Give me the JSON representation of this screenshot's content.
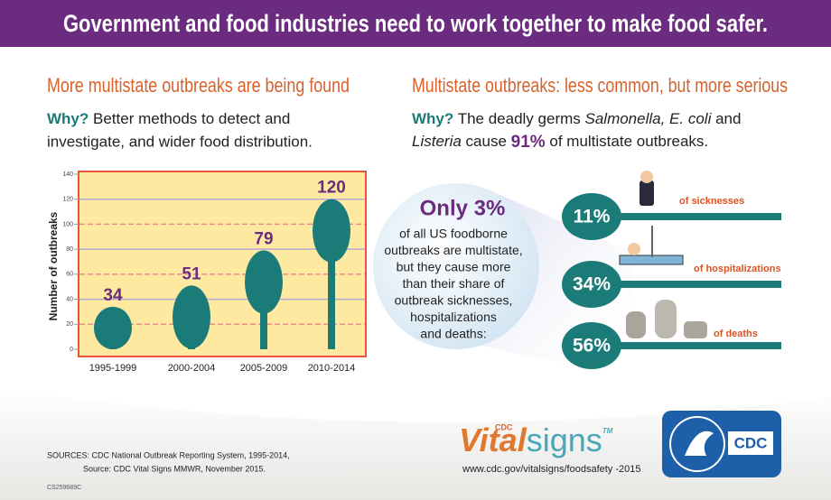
{
  "banner": {
    "title": "Government and food industries need to work together to make food safer."
  },
  "left": {
    "heading": "More multistate outbreaks are being found",
    "why_label": "Why?",
    "why_line1": " Better methods to detect and",
    "why_line2": "investigate, and wider food distribution."
  },
  "chart_data": {
    "type": "spoon-bar",
    "y_label": "Number of outbreaks",
    "categories": [
      "1995-1999",
      "2000-2004",
      "2005-2009",
      "2010-2014"
    ],
    "values": [
      34,
      51,
      79,
      120
    ],
    "color": "#1b7b78",
    "ylim": [
      0,
      140
    ],
    "yticks": [
      0,
      20,
      40,
      60,
      80,
      100,
      120,
      140
    ],
    "grid": true
  },
  "right": {
    "heading": "Multistate outbreaks: less common, but more serious",
    "why_label": "Why?",
    "why_a": " The deadly germs ",
    "why_b": "Salmonella, E. coli",
    "why_c": " and",
    "why_d": "Listeria",
    "why_e": " cause ",
    "why_f": "91%",
    "why_g": " of multistate outbreaks.",
    "circle_title": "Only 3%",
    "circle_lines": [
      "of all US foodborne",
      "outbreaks are multistate,",
      "but they cause more",
      "than their share of",
      "outbreak sicknesses,",
      "hospitalizations",
      "and deaths:"
    ],
    "stats": [
      {
        "percent": "11%",
        "label": "of sicknesses"
      },
      {
        "percent": "34%",
        "label": "of hospitalizations"
      },
      {
        "percent": "56%",
        "label": "of deaths"
      }
    ]
  },
  "footer": {
    "sources1": "SOURCES: CDC National Outbreak Reporting System, 1995-2014,",
    "sources2": "Source: CDC Vital Signs MMWR, November 2015.",
    "code": "CS259689C",
    "brand_small": "CDC",
    "brand_vital": "Vital",
    "brand_signs": "signs",
    "brand_tm": "TM",
    "url": "www.cdc.gov/vitalsigns/foodsafety -2015",
    "logo": "CDC"
  }
}
